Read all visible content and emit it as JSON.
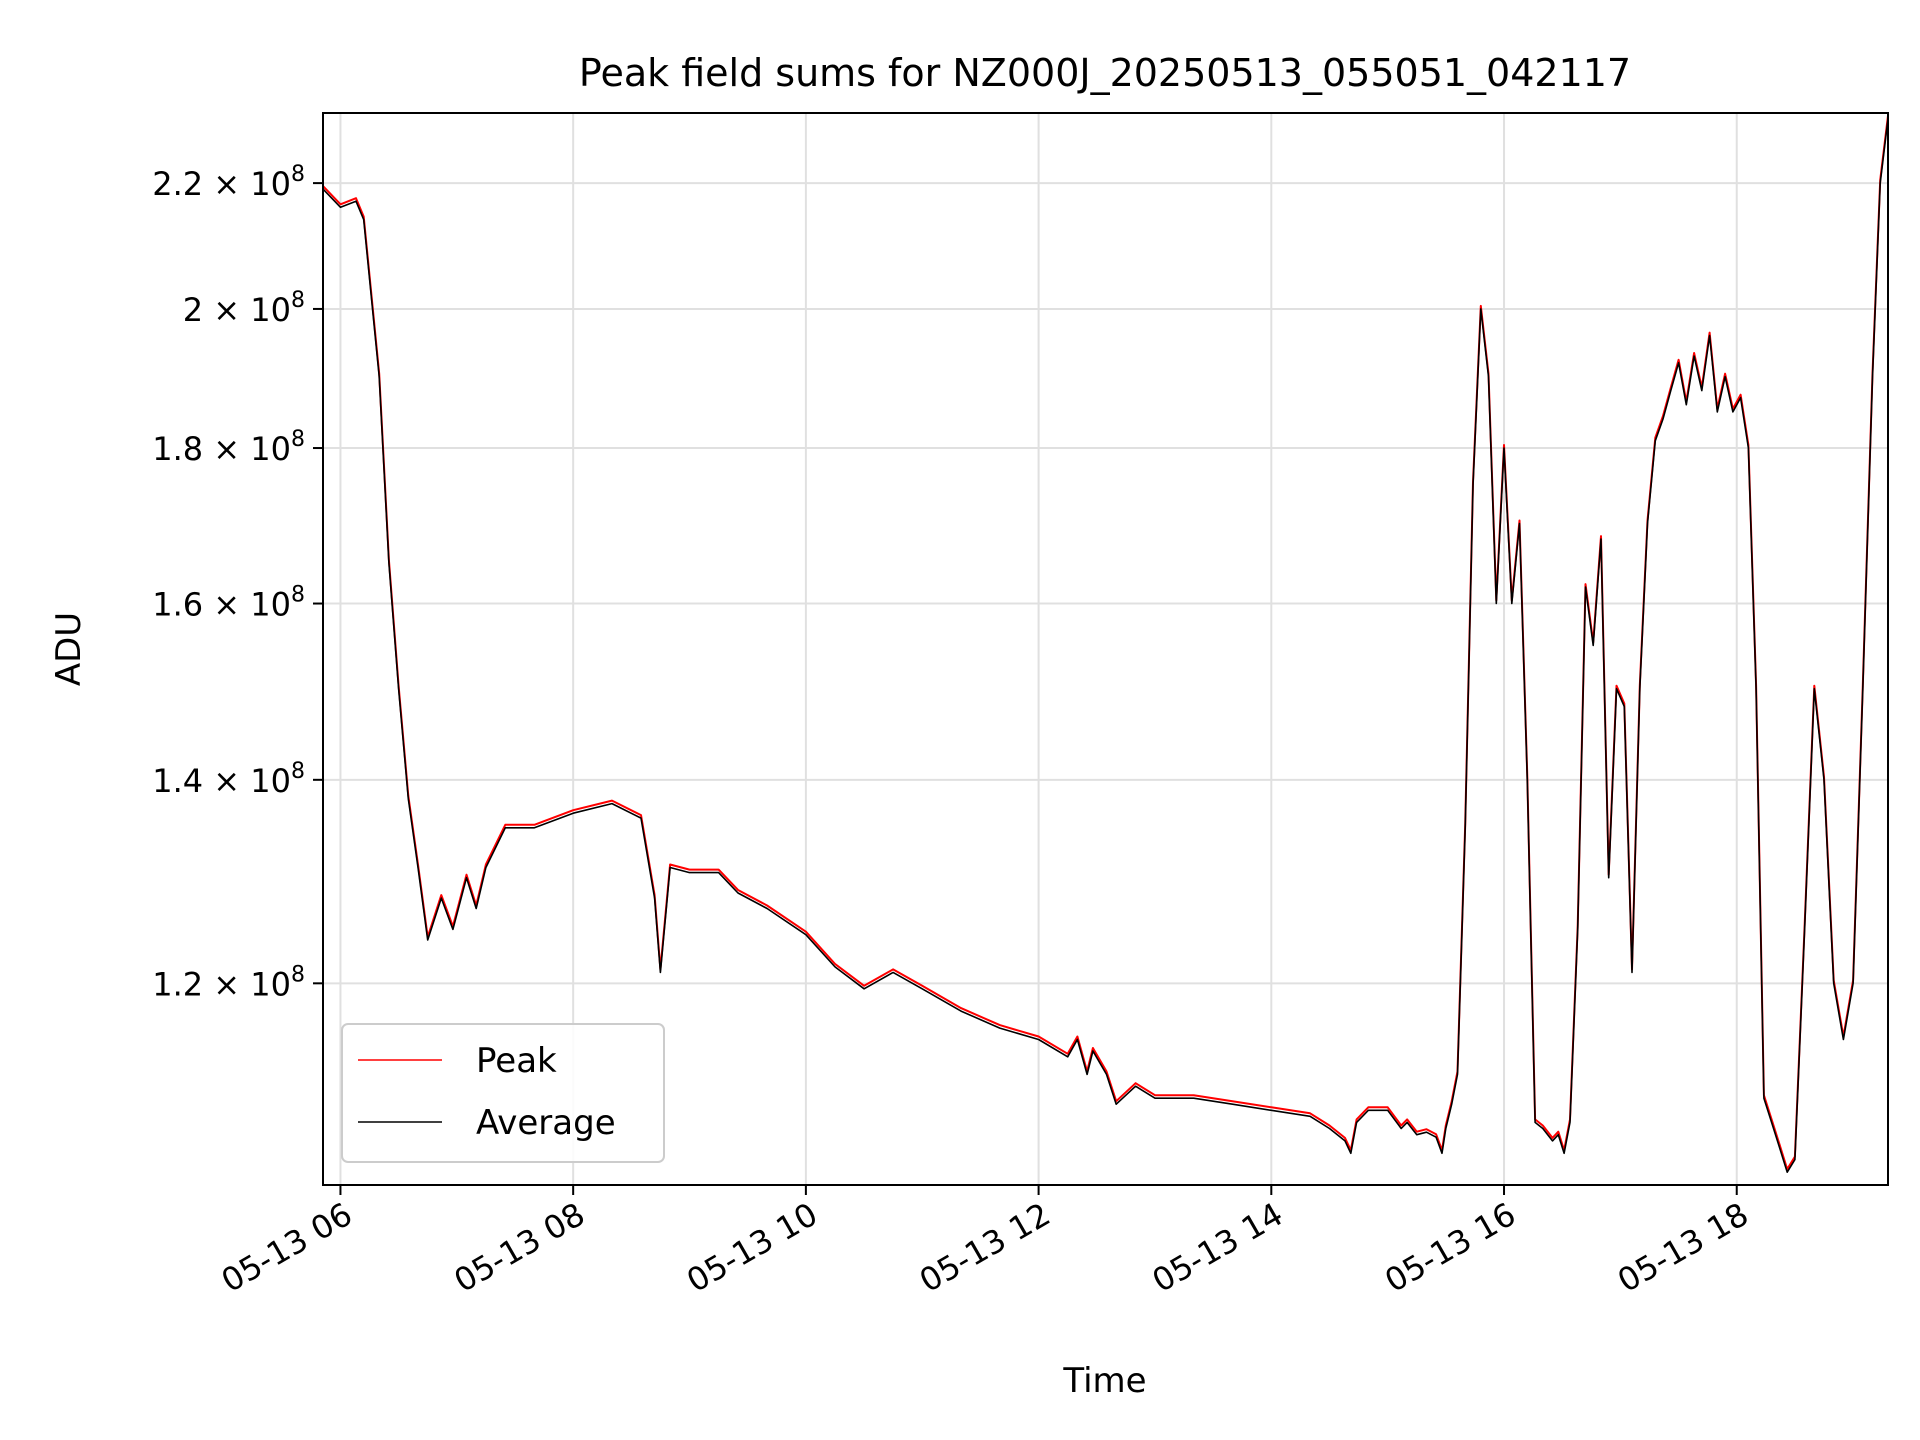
{
  "chart_data": {
    "type": "line",
    "title": "Peak field sums for NZ000J_20250513_055051_042117",
    "xlabel": "Time",
    "ylabel": "ADU",
    "y_scale": "log",
    "xlim": [
      "05-13 05:51",
      "05-13 19:18"
    ],
    "ylim": [
      103000000,
      232000000
    ],
    "x_ticks": [
      {
        "value": "05-13 06:00",
        "label": "05-13 06"
      },
      {
        "value": "05-13 08:00",
        "label": "05-13 08"
      },
      {
        "value": "05-13 10:00",
        "label": "05-13 10"
      },
      {
        "value": "05-13 12:00",
        "label": "05-13 12"
      },
      {
        "value": "05-13 14:00",
        "label": "05-13 14"
      },
      {
        "value": "05-13 16:00",
        "label": "05-13 16"
      },
      {
        "value": "05-13 18:00",
        "label": "05-13 18"
      }
    ],
    "y_ticks": [
      {
        "value": 120000000,
        "mantissa": "1.2",
        "base": "10",
        "exp": "8"
      },
      {
        "value": 140000000,
        "mantissa": "1.4",
        "base": "10",
        "exp": "8"
      },
      {
        "value": 160000000,
        "mantissa": "1.6",
        "base": "10",
        "exp": "8"
      },
      {
        "value": 180000000,
        "mantissa": "1.8",
        "base": "10",
        "exp": "8"
      },
      {
        "value": 200000000,
        "mantissa": "2",
        "base": "10",
        "exp": "8"
      },
      {
        "value": 220000000,
        "mantissa": "2.2",
        "base": "10",
        "exp": "8"
      }
    ],
    "grid": true,
    "legend_position": "lower-left",
    "series": [
      {
        "name": "Peak",
        "color": "#ff0000"
      },
      {
        "name": "Average",
        "color": "#000000"
      }
    ],
    "average_points": [
      [
        "05-13 05:51",
        219000000
      ],
      [
        "05-13 06:00",
        216000000
      ],
      [
        "05-13 06:08",
        217000000
      ],
      [
        "05-13 06:12",
        214000000
      ],
      [
        "05-13 06:20",
        190000000
      ],
      [
        "05-13 06:25",
        165000000
      ],
      [
        "05-13 06:30",
        150000000
      ],
      [
        "05-13 06:35",
        138000000
      ],
      [
        "05-13 06:40",
        131000000
      ],
      [
        "05-13 06:45",
        124000000
      ],
      [
        "05-13 06:52",
        128000000
      ],
      [
        "05-13 06:58",
        125000000
      ],
      [
        "05-13 07:05",
        130000000
      ],
      [
        "05-13 07:10",
        127000000
      ],
      [
        "05-13 07:15",
        131000000
      ],
      [
        "05-13 07:25",
        135000000
      ],
      [
        "05-13 07:40",
        135000000
      ],
      [
        "05-13 08:00",
        136500000
      ],
      [
        "05-13 08:20",
        137500000
      ],
      [
        "05-13 08:35",
        136000000
      ],
      [
        "05-13 08:42",
        128000000
      ],
      [
        "05-13 08:45",
        121000000
      ],
      [
        "05-13 08:50",
        131000000
      ],
      [
        "05-13 09:00",
        130500000
      ],
      [
        "05-13 09:15",
        130500000
      ],
      [
        "05-13 09:25",
        128500000
      ],
      [
        "05-13 09:40",
        127000000
      ],
      [
        "05-13 10:00",
        124500000
      ],
      [
        "05-13 10:15",
        121500000
      ],
      [
        "05-13 10:30",
        119500000
      ],
      [
        "05-13 10:45",
        121000000
      ],
      [
        "05-13 11:00",
        119500000
      ],
      [
        "05-13 11:20",
        117500000
      ],
      [
        "05-13 11:40",
        116000000
      ],
      [
        "05-13 12:00",
        115000000
      ],
      [
        "05-13 12:15",
        113500000
      ],
      [
        "05-13 12:20",
        115000000
      ],
      [
        "05-13 12:25",
        112000000
      ],
      [
        "05-13 12:28",
        114000000
      ],
      [
        "05-13 12:35",
        112000000
      ],
      [
        "05-13 12:40",
        109500000
      ],
      [
        "05-13 12:50",
        111000000
      ],
      [
        "05-13 13:00",
        110000000
      ],
      [
        "05-13 13:20",
        110000000
      ],
      [
        "05-13 13:40",
        109500000
      ],
      [
        "05-13 14:00",
        109000000
      ],
      [
        "05-13 14:20",
        108500000
      ],
      [
        "05-13 14:30",
        107500000
      ],
      [
        "05-13 14:38",
        106500000
      ],
      [
        "05-13 14:41",
        105500000
      ],
      [
        "05-13 14:44",
        108000000
      ],
      [
        "05-13 14:50",
        109000000
      ],
      [
        "05-13 15:00",
        109000000
      ],
      [
        "05-13 15:07",
        107500000
      ],
      [
        "05-13 15:10",
        108000000
      ],
      [
        "05-13 15:15",
        107000000
      ],
      [
        "05-13 15:20",
        107200000
      ],
      [
        "05-13 15:25",
        106800000
      ],
      [
        "05-13 15:28",
        105500000
      ],
      [
        "05-13 15:30",
        107500000
      ],
      [
        "05-13 15:33",
        109500000
      ],
      [
        "05-13 15:36",
        112000000
      ],
      [
        "05-13 15:40",
        135000000
      ],
      [
        "05-13 15:44",
        175000000
      ],
      [
        "05-13 15:48",
        200000000
      ],
      [
        "05-13 15:52",
        190000000
      ],
      [
        "05-13 15:56",
        160000000
      ],
      [
        "05-13 16:00",
        180000000
      ],
      [
        "05-13 16:04",
        160000000
      ],
      [
        "05-13 16:08",
        170000000
      ],
      [
        "05-13 16:12",
        140000000
      ],
      [
        "05-13 16:16",
        108000000
      ],
      [
        "05-13 16:20",
        107500000
      ],
      [
        "05-13 16:25",
        106500000
      ],
      [
        "05-13 16:28",
        107000000
      ],
      [
        "05-13 16:31",
        105500000
      ],
      [
        "05-13 16:34",
        108000000
      ],
      [
        "05-13 16:38",
        125000000
      ],
      [
        "05-13 16:42",
        162000000
      ],
      [
        "05-13 16:46",
        155000000
      ],
      [
        "05-13 16:50",
        168000000
      ],
      [
        "05-13 16:54",
        130000000
      ],
      [
        "05-13 16:58",
        150000000
      ],
      [
        "05-13 17:02",
        148000000
      ],
      [
        "05-13 17:06",
        121000000
      ],
      [
        "05-13 17:10",
        150000000
      ],
      [
        "05-13 17:14",
        170000000
      ],
      [
        "05-13 17:18",
        181000000
      ],
      [
        "05-13 17:22",
        184000000
      ],
      [
        "05-13 17:26",
        188000000
      ],
      [
        "05-13 17:30",
        192000000
      ],
      [
        "05-13 17:34",
        186000000
      ],
      [
        "05-13 17:38",
        193000000
      ],
      [
        "05-13 17:42",
        188000000
      ],
      [
        "05-13 17:46",
        196000000
      ],
      [
        "05-13 17:50",
        185000000
      ],
      [
        "05-13 17:54",
        190000000
      ],
      [
        "05-13 17:58",
        185000000
      ],
      [
        "05-13 18:02",
        187000000
      ],
      [
        "05-13 18:06",
        180000000
      ],
      [
        "05-13 18:10",
        150000000
      ],
      [
        "05-13 18:14",
        110000000
      ],
      [
        "05-13 18:18",
        108000000
      ],
      [
        "05-13 18:22",
        106000000
      ],
      [
        "05-13 18:26",
        104000000
      ],
      [
        "05-13 18:30",
        105000000
      ],
      [
        "05-13 18:35",
        125000000
      ],
      [
        "05-13 18:40",
        150000000
      ],
      [
        "05-13 18:45",
        140000000
      ],
      [
        "05-13 18:50",
        120000000
      ],
      [
        "05-13 18:55",
        115000000
      ],
      [
        "05-13 19:00",
        120000000
      ],
      [
        "05-13 19:05",
        150000000
      ],
      [
        "05-13 19:10",
        190000000
      ],
      [
        "05-13 19:14",
        220000000
      ],
      [
        "05-13 19:18",
        231000000
      ]
    ]
  }
}
